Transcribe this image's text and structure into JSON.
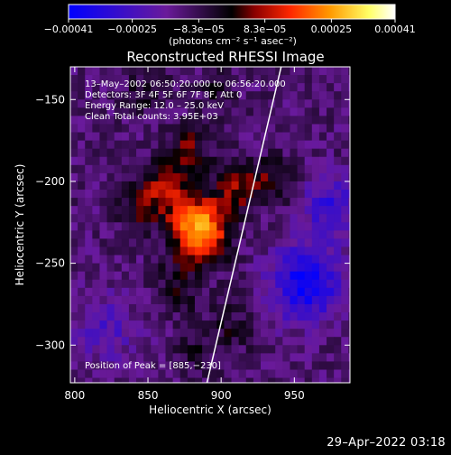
{
  "chart_data": {
    "type": "heatmap",
    "title": "Reconstructed RHESSI Image",
    "xlabel": "Heliocentric X (arcsec)",
    "ylabel": "Heliocentric Y (arcsec)",
    "xlim": [
      797,
      988
    ],
    "ylim": [
      -323,
      -130
    ],
    "xticks": [
      800,
      850,
      900,
      950
    ],
    "yticks": [
      -150,
      -200,
      -250,
      -300
    ],
    "colorbar": {
      "range": [
        -0.00041,
        0.00041
      ],
      "tick_values": [
        -0.00041,
        -0.00025,
        -8.3e-05,
        8.3e-05,
        0.00025,
        0.00041
      ],
      "tick_labels": [
        "−0.00041",
        "−0.00025",
        "−8.3e−05",
        "8.3e−05",
        "0.00025",
        "0.00041"
      ],
      "units_label": "(photons cm⁻² s⁻¹ asec⁻²)",
      "colors": [
        "#0000ff",
        "#6a1a9a",
        "#000000",
        "#8b0000",
        "#ff2800",
        "#ff9900",
        "#ffff66",
        "#ffffff"
      ]
    },
    "annotations": [
      "13–May–2002 06:50:20.000 to 06:56:20.000",
      "Detectors: 3F 4F 5F 6F 7F 8F, Att 0",
      "Energy Range: 12.0 – 25.0 keV",
      "Clean    Total counts: 3.95E+03"
    ],
    "peak_label": "Position of Peak = [885,−230]",
    "peak": [
      885,
      -230
    ],
    "limb_line": [
      [
        889,
        -328
      ],
      [
        941,
        -130
      ]
    ],
    "sources": [
      {
        "x": 885,
        "y": -230,
        "amp": 0.00041,
        "sigma": 13
      },
      {
        "x": 862,
        "y": -205,
        "amp": 0.00018,
        "sigma": 12
      },
      {
        "x": 878,
        "y": -180,
        "amp": 0.00014,
        "sigma": 10
      },
      {
        "x": 910,
        "y": -205,
        "amp": 0.00016,
        "sigma": 11
      },
      {
        "x": 935,
        "y": -198,
        "amp": 0.00012,
        "sigma": 10
      },
      {
        "x": 842,
        "y": -215,
        "amp": 0.00011,
        "sigma": 10
      },
      {
        "x": 870,
        "y": -265,
        "amp": 0.0001,
        "sigma": 11
      },
      {
        "x": 850,
        "y": -145,
        "amp": 9e-05,
        "sigma": 10
      },
      {
        "x": 898,
        "y": -145,
        "amp": 8e-05,
        "sigma": 9
      },
      {
        "x": 905,
        "y": -290,
        "amp": 8e-05,
        "sigma": 12
      },
      {
        "x": 882,
        "y": -305,
        "amp": 7e-05,
        "sigma": 9
      },
      {
        "x": 958,
        "y": -262,
        "amp": -0.00028,
        "sigma": 16
      },
      {
        "x": 975,
        "y": -215,
        "amp": -0.00018,
        "sigma": 12
      },
      {
        "x": 820,
        "y": -290,
        "amp": -0.00012,
        "sigma": 14
      }
    ],
    "background": -0.00012
  },
  "footer": {
    "timestamp": "29–Apr–2022 03:18"
  }
}
